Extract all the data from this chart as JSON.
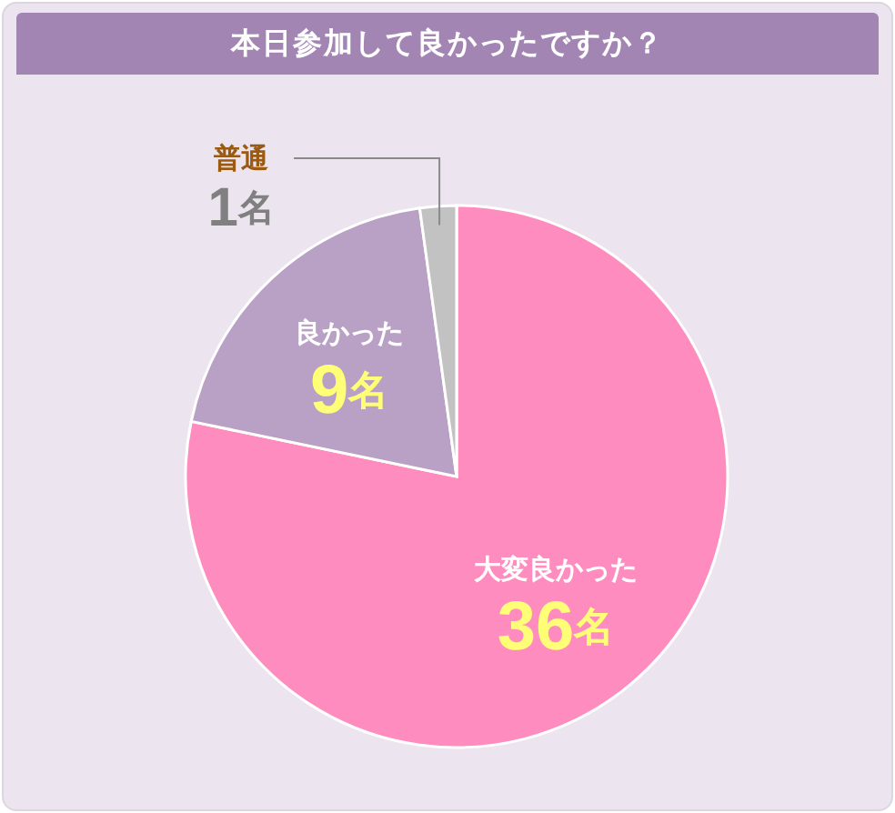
{
  "chart_data": {
    "type": "pie",
    "title": "本日参加して良かったですか？",
    "categories": [
      "大変良かった",
      "良かった",
      "普通"
    ],
    "values": [
      36,
      9,
      1
    ],
    "colors": [
      "#ff8cbe",
      "#b9a0c5",
      "#c2c2c2"
    ],
    "value_labels": [
      "36名",
      "9名",
      "1名"
    ]
  }
}
